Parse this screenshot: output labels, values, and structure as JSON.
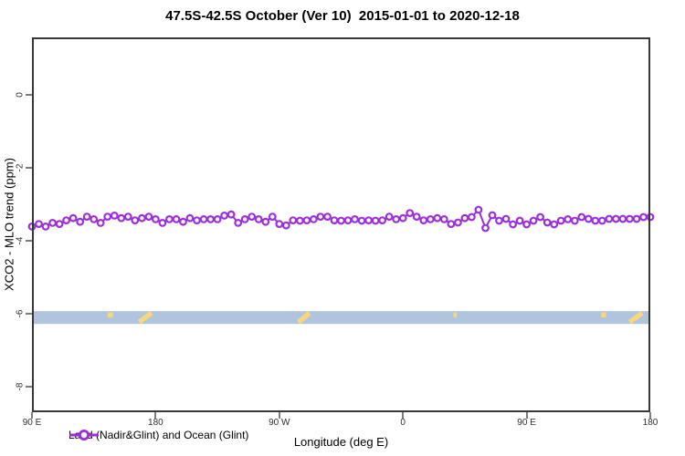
{
  "title": "47.5S-42.5S October (Ver 10)  2015-01-01 to 2020-12-18",
  "axes": {
    "x": {
      "label": "Longitude (deg E)",
      "tick_labels": [
        "90 E",
        "180",
        "90 W",
        "0",
        "90 E",
        "180"
      ]
    },
    "y": {
      "label": "XCO2 - MLO trend (ppm)",
      "tick_labels": [
        "0",
        "-2",
        "-4",
        "-6",
        "-8"
      ]
    }
  },
  "legend": {
    "label": "Land (Nadir&Glint) and Ocean (Glint)"
  },
  "colors": {
    "series": "#9C2FD9",
    "marker_fill": "#ffffff",
    "ocean_band": "#B0C4DE",
    "land_patch": "#F7D77E",
    "axis_box": "#383838",
    "tick": "#7d7d7d"
  },
  "chart_data": {
    "type": "line",
    "title": "47.5S-42.5S October (Ver 10)  2015-01-01 to 2020-12-18",
    "xlabel": "Longitude (deg E)",
    "ylabel": "XCO2 - MLO trend (ppm)",
    "grid": false,
    "legend_position": "bottom-left-inside",
    "x_axis": {
      "tick_labels": [
        "90 E",
        "180",
        "90 W",
        "0",
        "90 E",
        "180"
      ],
      "tick_offsets_deg": [
        0,
        90,
        180,
        270,
        360,
        450
      ],
      "xlim_offsets_deg": [
        0,
        450
      ]
    },
    "y_axis": {
      "tick_labels": [
        "0",
        "-2",
        "-4",
        "-6",
        "-8"
      ],
      "tick_values": [
        0,
        -2,
        -4,
        -6,
        -8
      ],
      "ylim": [
        -8.7,
        1.6
      ]
    },
    "series": [
      {
        "name": "Land (Nadir&Glint) and Ocean (Glint)",
        "marker": "open-circle",
        "color": "#9C2FD9",
        "x_start_offset_deg": 0,
        "x_step_deg": 5,
        "values": [
          -3.61,
          -3.54,
          -3.61,
          -3.51,
          -3.54,
          -3.44,
          -3.38,
          -3.48,
          -3.34,
          -3.41,
          -3.51,
          -3.34,
          -3.31,
          -3.38,
          -3.34,
          -3.44,
          -3.38,
          -3.34,
          -3.41,
          -3.51,
          -3.41,
          -3.41,
          -3.48,
          -3.38,
          -3.44,
          -3.41,
          -3.41,
          -3.41,
          -3.31,
          -3.28,
          -3.51,
          -3.41,
          -3.34,
          -3.41,
          -3.48,
          -3.34,
          -3.54,
          -3.58,
          -3.44,
          -3.45,
          -3.44,
          -3.41,
          -3.34,
          -3.34,
          -3.44,
          -3.45,
          -3.44,
          -3.41,
          -3.45,
          -3.44,
          -3.45,
          -3.44,
          -3.34,
          -3.41,
          -3.38,
          -3.24,
          -3.34,
          -3.44,
          -3.41,
          -3.38,
          -3.41,
          -3.54,
          -3.5,
          -3.38,
          -3.35,
          -3.15,
          -3.65,
          -3.3,
          -3.45,
          -3.4,
          -3.55,
          -3.45,
          -3.55,
          -3.45,
          -3.35,
          -3.5,
          -3.55,
          -3.45,
          -3.41,
          -3.45,
          -3.35,
          -3.4,
          -3.45,
          -3.45,
          -3.4,
          -3.4,
          -3.4,
          -3.4,
          -3.4,
          -3.35,
          -3.35
        ]
      }
    ],
    "surface_strip": {
      "y_top_ppm": -5.93,
      "y_bottom_ppm": -6.28,
      "ocean_color": "#B0C4DE",
      "land_color": "#F7D77E",
      "land_patches": [
        {
          "kind": "dot",
          "x_deg": 57,
          "w_deg": 4
        },
        {
          "kind": "slash",
          "x0_deg": 78,
          "x1_deg": 87
        },
        {
          "kind": "slash",
          "x0_deg": 194,
          "x1_deg": 202
        },
        {
          "kind": "dot",
          "x_deg": 308,
          "w_deg": 2.5
        },
        {
          "kind": "dot",
          "x_deg": 416,
          "w_deg": 3.5
        },
        {
          "kind": "slash",
          "x0_deg": 435,
          "x1_deg": 444
        }
      ]
    }
  }
}
